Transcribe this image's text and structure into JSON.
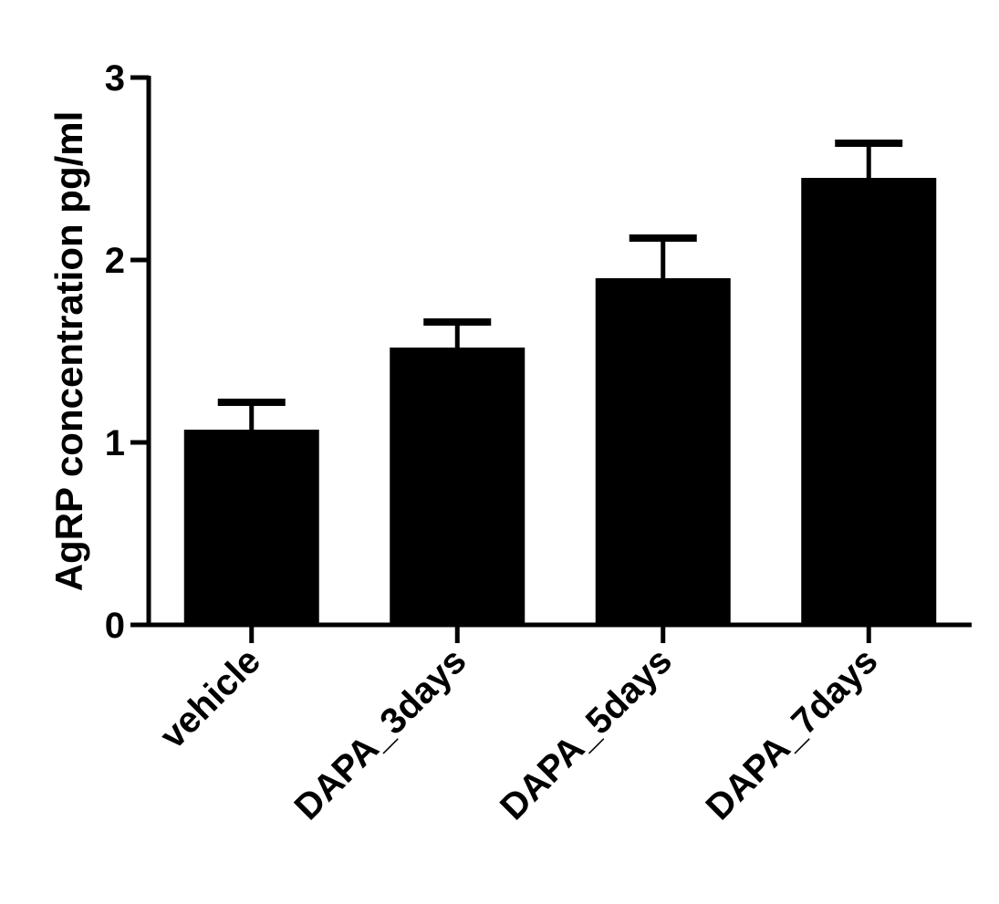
{
  "chart_data": {
    "type": "bar",
    "title": "",
    "xlabel": "",
    "ylabel": "AgRP  concentration pg/ml",
    "categories": [
      "vehicle",
      "DAPA_3days",
      "DAPA_5days",
      "DAPA_7days"
    ],
    "values": [
      1.07,
      1.52,
      1.9,
      2.45
    ],
    "error_upper": [
      0.15,
      0.14,
      0.22,
      0.19
    ],
    "ylim": [
      0,
      3
    ],
    "yticks": [
      "0",
      "1",
      "2",
      "3"
    ],
    "grid": false,
    "legend": "none",
    "bar_color": "#000000"
  }
}
